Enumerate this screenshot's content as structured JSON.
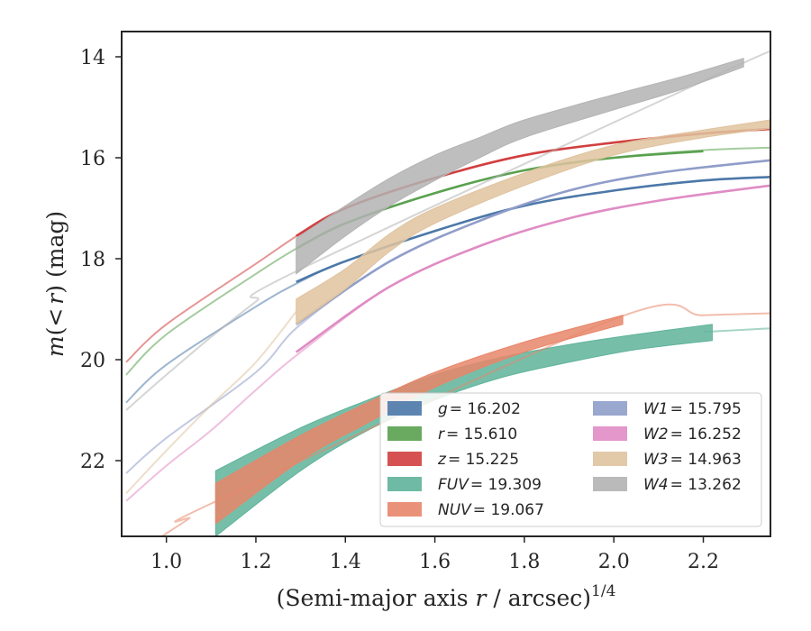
{
  "chart_data": {
    "type": "line",
    "xlabel": "(Semi-major axis r / arcsec)^1/4",
    "xlabel_main": "(Semi-major axis ",
    "xlabel_var": "r",
    "xlabel_rest": " / arcsec)",
    "xlabel_sup": "1/4",
    "ylabel": "m(<r) (mag)",
    "ylabel_m": "m",
    "ylabel_paren_open": "(",
    "ylabel_lt": "<",
    "ylabel_r": "r",
    "ylabel_paren_close": ")",
    "ylabel_unit": "(mag)",
    "xlim": [
      0.9,
      2.35
    ],
    "ylim": [
      23.5,
      13.5
    ],
    "y_inverted": true,
    "grid": false,
    "legend_placement": "lower-right",
    "x_ticks": [
      1.0,
      1.2,
      1.4,
      1.6,
      1.8,
      2.0,
      2.2
    ],
    "x_tick_labels": [
      "1.0",
      "1.2",
      "1.4",
      "1.6",
      "1.8",
      "2.0",
      "2.2"
    ],
    "y_ticks": [
      14,
      16,
      18,
      20,
      22
    ],
    "y_tick_labels": [
      "14",
      "16",
      "18",
      "20",
      "22"
    ],
    "series": [
      {
        "name": "g = 16.202",
        "label_var": "g",
        "label_val": "= 16.202",
        "color": "#4c78a8",
        "model": [
          [
            0.91,
            20.85
          ],
          [
            1.0,
            20.1
          ],
          [
            1.2,
            18.95
          ],
          [
            1.3,
            18.45
          ],
          [
            1.4,
            18.05
          ],
          [
            1.6,
            17.45
          ],
          [
            1.8,
            16.95
          ],
          [
            2.0,
            16.65
          ],
          [
            2.2,
            16.45
          ],
          [
            2.35,
            16.38
          ]
        ],
        "band": [
          [
            1.29,
            18.46,
            18.46
          ],
          [
            1.4,
            18.05,
            18.05
          ],
          [
            1.6,
            17.45,
            17.45
          ],
          [
            1.8,
            16.95,
            16.95
          ],
          [
            2.0,
            16.65,
            16.65
          ],
          [
            2.2,
            16.45,
            16.45
          ],
          [
            2.35,
            16.38,
            16.38
          ]
        ]
      },
      {
        "name": "r = 15.610",
        "label_var": "r",
        "label_val": "= 15.610",
        "color": "#59a14f",
        "model": [
          [
            0.91,
            20.3
          ],
          [
            1.0,
            19.5
          ],
          [
            1.2,
            18.3
          ],
          [
            1.3,
            17.75
          ],
          [
            1.4,
            17.3
          ],
          [
            1.6,
            16.7
          ],
          [
            1.8,
            16.25
          ],
          [
            2.0,
            16.0
          ],
          [
            2.2,
            15.85
          ],
          [
            2.35,
            15.8
          ]
        ],
        "band": [
          [
            1.29,
            17.8,
            17.8
          ],
          [
            1.4,
            17.3,
            17.3
          ],
          [
            1.6,
            16.7,
            16.7
          ],
          [
            1.8,
            16.25,
            16.25
          ],
          [
            2.0,
            16.0,
            16.0
          ],
          [
            2.2,
            15.87,
            15.87
          ]
        ]
      },
      {
        "name": "z = 15.225",
        "label_var": "z",
        "label_val": "= 15.225",
        "color": "#d13f3f",
        "model": [
          [
            0.91,
            20.05
          ],
          [
            1.0,
            19.3
          ],
          [
            1.2,
            18.1
          ],
          [
            1.3,
            17.5
          ],
          [
            1.4,
            17.0
          ],
          [
            1.6,
            16.4
          ],
          [
            1.8,
            15.95
          ],
          [
            2.0,
            15.7
          ],
          [
            2.2,
            15.52
          ],
          [
            2.35,
            15.43
          ]
        ],
        "band": [
          [
            1.29,
            17.55,
            17.55
          ],
          [
            1.4,
            17.0,
            17.0
          ],
          [
            1.6,
            16.4,
            16.4
          ],
          [
            1.8,
            15.95,
            15.95
          ],
          [
            2.0,
            15.7,
            15.7
          ],
          [
            2.2,
            15.52,
            15.52
          ],
          [
            2.35,
            15.43,
            15.43
          ]
        ]
      },
      {
        "name": "FUV = 19.309",
        "label_var": "FUV",
        "label_val": "= 19.309",
        "color": "#5fb39a",
        "model": [
          [
            2.2,
            19.45
          ],
          [
            2.35,
            19.38
          ]
        ],
        "band": [
          [
            1.11,
            22.2,
            23.5
          ],
          [
            1.3,
            21.35,
            22.2
          ],
          [
            1.45,
            20.8,
            21.4
          ],
          [
            1.6,
            20.3,
            20.8
          ],
          [
            1.75,
            19.95,
            20.35
          ],
          [
            1.9,
            19.7,
            20.05
          ],
          [
            2.05,
            19.5,
            19.8
          ],
          [
            2.22,
            19.3,
            19.62
          ]
        ]
      },
      {
        "name": "NUV = 19.067",
        "label_var": "NUV",
        "label_val": "= 19.067",
        "color": "#e8866a",
        "model": [
          [
            0.99,
            23.5
          ],
          [
            1.05,
            23.15
          ],
          [
            1.1,
            22.85
          ],
          [
            2.0,
            19.2
          ],
          [
            2.2,
            19.12
          ],
          [
            2.35,
            19.08
          ]
        ],
        "band": [
          [
            1.11,
            22.45,
            23.25
          ],
          [
            1.3,
            21.5,
            22.0
          ],
          [
            1.45,
            20.85,
            21.25
          ],
          [
            1.6,
            20.25,
            20.55
          ],
          [
            1.8,
            19.65,
            19.85
          ],
          [
            2.02,
            19.12,
            19.3
          ]
        ]
      },
      {
        "name": "W1 = 15.795",
        "label_var": "W1",
        "label_val": "= 15.795",
        "color": "#8f9dc9",
        "model": [
          [
            0.91,
            22.25
          ],
          [
            1.0,
            21.55
          ],
          [
            1.2,
            20.25
          ],
          [
            1.3,
            19.3
          ],
          [
            1.5,
            18.05
          ],
          [
            1.7,
            17.25
          ],
          [
            1.9,
            16.65
          ],
          [
            2.1,
            16.3
          ],
          [
            2.35,
            16.05
          ]
        ],
        "band": [
          [
            1.29,
            19.3,
            19.3
          ],
          [
            1.5,
            18.05,
            18.05
          ],
          [
            1.7,
            17.25,
            17.25
          ],
          [
            1.9,
            16.65,
            16.65
          ],
          [
            2.1,
            16.3,
            16.3
          ],
          [
            2.35,
            16.05,
            16.05
          ]
        ]
      },
      {
        "name": "W2 = 16.252",
        "label_var": "W2",
        "label_val": "= 16.252",
        "color": "#e08cc4",
        "model": [
          [
            0.91,
            22.8
          ],
          [
            1.0,
            22.1
          ],
          [
            1.1,
            21.4
          ],
          [
            1.2,
            20.6
          ],
          [
            1.3,
            19.85
          ],
          [
            1.5,
            18.55
          ],
          [
            1.7,
            17.75
          ],
          [
            1.9,
            17.2
          ],
          [
            2.1,
            16.85
          ],
          [
            2.35,
            16.55
          ]
        ],
        "band": [
          [
            1.29,
            19.85,
            19.85
          ],
          [
            1.5,
            18.55,
            18.55
          ],
          [
            1.7,
            17.75,
            17.75
          ],
          [
            1.9,
            17.2,
            17.2
          ],
          [
            2.1,
            16.85,
            16.85
          ],
          [
            2.35,
            16.55,
            16.55
          ]
        ]
      },
      {
        "name": "W3 = 14.963",
        "label_var": "W3",
        "label_val": "= 14.963",
        "color": "#dfc39f",
        "model": [
          [
            0.91,
            22.65
          ],
          [
            1.0,
            21.8
          ],
          [
            1.1,
            20.9
          ],
          [
            1.2,
            20.05
          ],
          [
            1.29,
            19.05
          ]
        ],
        "band": [
          [
            1.29,
            18.8,
            19.3
          ],
          [
            1.4,
            18.2,
            18.6
          ],
          [
            1.5,
            17.5,
            17.85
          ],
          [
            1.6,
            17.0,
            17.3
          ],
          [
            1.8,
            16.3,
            16.55
          ],
          [
            2.0,
            15.75,
            15.95
          ],
          [
            2.2,
            15.45,
            15.6
          ],
          [
            2.35,
            15.25,
            15.42
          ]
        ]
      },
      {
        "name": "W4 = 13.262",
        "label_var": "W4",
        "label_val": "= 13.262",
        "color": "#b3b3b3",
        "model": [
          [
            0.91,
            21.0
          ],
          [
            1.0,
            20.3
          ],
          [
            1.1,
            19.55
          ],
          [
            1.2,
            18.85
          ],
          [
            1.29,
            18.25
          ],
          [
            2.29,
            14.12
          ],
          [
            2.35,
            14.0
          ]
        ],
        "band": [
          [
            1.29,
            17.6,
            18.3
          ],
          [
            1.4,
            16.95,
            17.55
          ],
          [
            1.5,
            16.4,
            16.95
          ],
          [
            1.6,
            15.95,
            16.45
          ],
          [
            1.7,
            15.6,
            16.0
          ],
          [
            1.8,
            15.25,
            15.6
          ],
          [
            2.0,
            14.75,
            15.05
          ],
          [
            2.15,
            14.4,
            14.65
          ],
          [
            2.29,
            14.03,
            14.2
          ]
        ]
      }
    ]
  }
}
